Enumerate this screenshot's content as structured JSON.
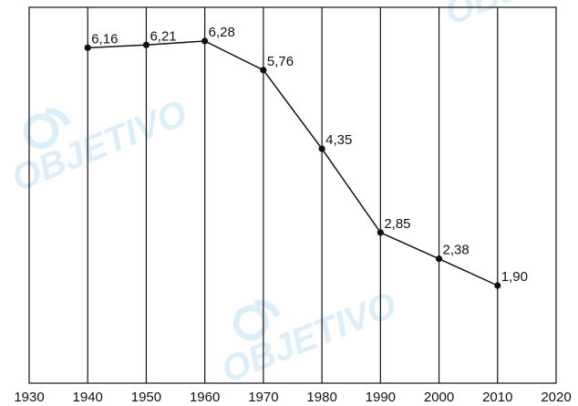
{
  "chart_data": {
    "type": "line",
    "title": "",
    "xlabel": "",
    "ylabel": "",
    "x_ticks": [
      1930,
      1940,
      1950,
      1960,
      1970,
      1980,
      1990,
      2000,
      2010,
      2020
    ],
    "xlim": [
      1930,
      2020
    ],
    "series": [
      {
        "x": [
          1940,
          1950,
          1960,
          1970,
          1980,
          1990,
          2000,
          2010
        ],
        "values": [
          6.16,
          6.21,
          6.28,
          5.76,
          4.35,
          2.85,
          2.38,
          1.9
        ],
        "labels": [
          "6,16",
          "6,21",
          "6,28",
          "5,76",
          "4,35",
          "2,85",
          "2,38",
          "1,90"
        ]
      }
    ],
    "grid": "vertical lines at each decade",
    "y_axis_visible": false,
    "line_color": "#111111"
  },
  "watermark": {
    "text": "OBJETIVO",
    "color": "#2a9fd8"
  }
}
